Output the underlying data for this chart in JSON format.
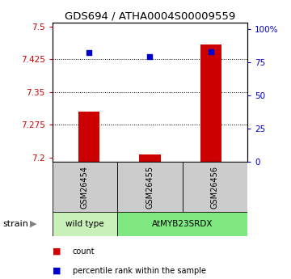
{
  "title": "GDS694 / ATHA0004S00009559",
  "samples": [
    "GSM26454",
    "GSM26455",
    "GSM26456"
  ],
  "strain_groups": [
    {
      "label": "wild type",
      "samples": [
        "GSM26454"
      ],
      "color": "#c8f0b8"
    },
    {
      "label": "AtMYB23SRDX",
      "samples": [
        "GSM26455",
        "GSM26456"
      ],
      "color": "#80e880"
    }
  ],
  "red_values": [
    7.305,
    7.206,
    7.46
  ],
  "blue_values": [
    82,
    79,
    83
  ],
  "ylim_left": [
    7.19,
    7.51
  ],
  "ylim_right": [
    0,
    105
  ],
  "yticks_left": [
    7.2,
    7.275,
    7.35,
    7.425,
    7.5
  ],
  "yticks_right": [
    0,
    25,
    50,
    75,
    100
  ],
  "ytick_labels_left": [
    "7.2",
    "7.275",
    "7.35",
    "7.425",
    "7.5"
  ],
  "ytick_labels_right": [
    "0",
    "25",
    "50",
    "75",
    "100%"
  ],
  "hlines": [
    7.275,
    7.35,
    7.425
  ],
  "bar_color": "#cc0000",
  "dot_color": "#0000cc",
  "left_tick_color": "#cc0000",
  "right_tick_color": "#0000cc",
  "strain_label": "strain",
  "legend_red": "count",
  "legend_blue": "percentile rank within the sample",
  "sample_box_color": "#cccccc",
  "bar_width": 0.35,
  "dot_size": 18
}
